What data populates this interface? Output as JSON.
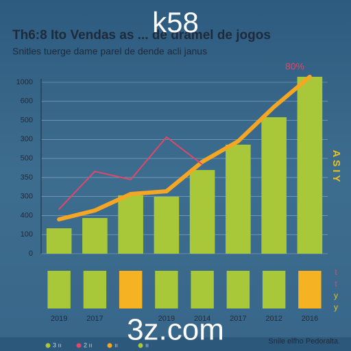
{
  "chart_data": {
    "type": "bar",
    "title": "Th6:8 Ito Vendas as ... de dramel de jogos",
    "subtitle": "Snitles tuerge dame parel de dende acli janus",
    "watermark_top": "k58",
    "watermark_bottom": "3z.com",
    "annotation": "80%",
    "side_text": "A S I Y",
    "corner_glyphs": [
      "t",
      "t",
      "y",
      "y"
    ],
    "footer": "Snile elfho Pedoralta.",
    "legend": [
      {
        "text": "3 ıı",
        "color": "#a8c83a"
      },
      {
        "text": "2 ıı",
        "color": "#e0476a"
      },
      {
        "text": "ıı",
        "color": "#f5a623"
      },
      {
        "text": "ıı",
        "color": "#a8c83a"
      }
    ],
    "categories": [
      "2019",
      "2017",
      null,
      "2019",
      "2014",
      "2017",
      "2012",
      "2016"
    ],
    "values": [
      148,
      208,
      340,
      332,
      488,
      636,
      796,
      1032
    ],
    "color": "#a8c83a",
    "series": [
      {
        "color": "#f5a623",
        "values": [
          200,
          252,
          348,
          364,
          536,
          656,
          856,
          1032
        ]
      },
      {
        "color": "#e0476a",
        "values": [
          260,
          480,
          432,
          680,
          520,
          null,
          null,
          null
        ]
      }
    ],
    "block_colors": [
      "#a8c83a",
      "#a8c83a",
      "#f5b324",
      "#a8c83a",
      "#a8c83a",
      "#a8c83a",
      "#a8c83a",
      "#f5b324"
    ],
    "ylim": [
      0,
      1000
    ],
    "yticks": [
      0,
      1000
    ],
    "y_labels": [
      "600",
      "500",
      "300",
      "500",
      "350",
      "300",
      "400",
      "100"
    ],
    "grid": true
  }
}
